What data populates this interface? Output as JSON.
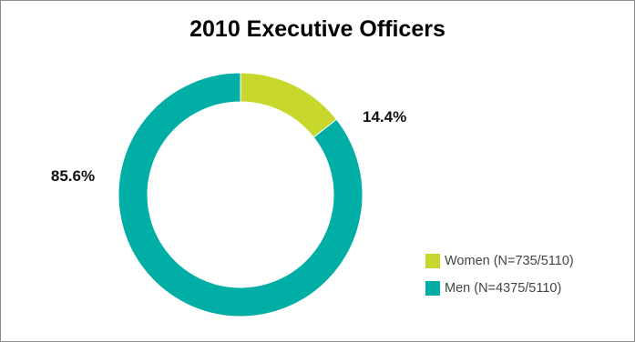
{
  "chart_data": {
    "type": "pie",
    "variant": "donut",
    "title": "2010 Executive Officers",
    "slices": [
      {
        "name": "Women (N=735/5110)",
        "value": 14.4,
        "label": "14.4%",
        "color": "#c7d72c"
      },
      {
        "name": "Men (N=4375/5110)",
        "value": 85.6,
        "label": "85.6%",
        "color": "#00aea5"
      }
    ],
    "legend_position": "bottom-right"
  }
}
